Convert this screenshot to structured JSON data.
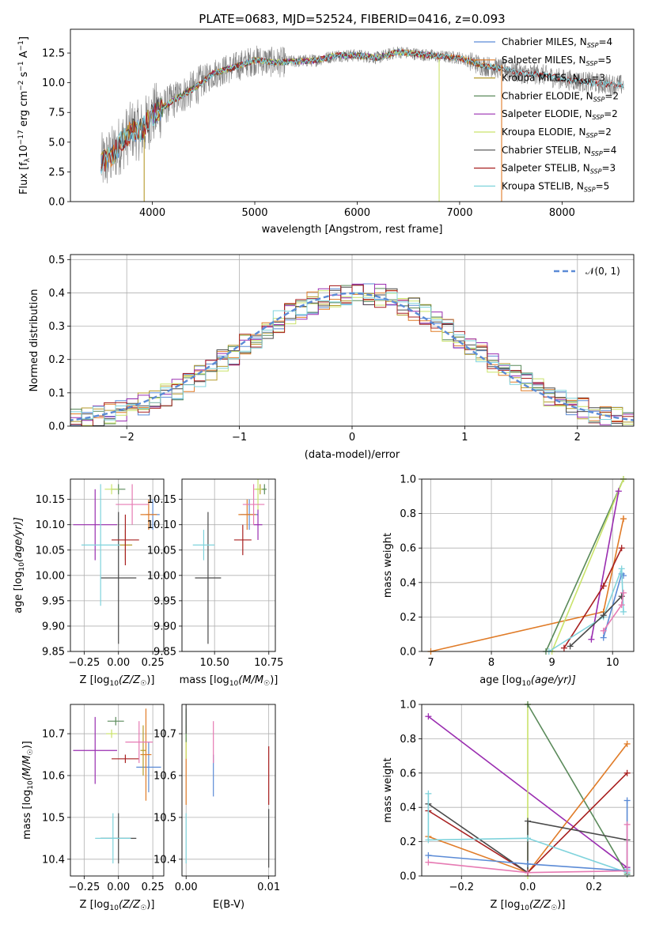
{
  "colors": {
    "Chabrier MILES": "#5b8bd6",
    "Salpeter MILES": "#e07b27",
    "Kroupa MILES": "#b59a2a",
    "Chabrier ELODIE": "#5a8a5a",
    "Salpeter ELODIE": "#9a2db0",
    "Kroupa ELODIE": "#c9e36a",
    "Chabrier STELIB": "#4a4a4a",
    "Salpeter STELIB": "#a82020",
    "Kroupa STELIB": "#7fd3dc",
    "pink": "#e67ab3",
    "data": "#7f7f7f",
    "gaussian": "#5b8bd6"
  },
  "chart_data": [
    {
      "id": "spectrum",
      "type": "line",
      "title": "PLATE=0683, MJD=52524, FIBERID=0416, z=0.093",
      "xlabel": "wavelength [Angstrom, rest frame]",
      "ylabel_main": "Flux [f",
      "ylabel_sub1": "λ",
      "ylabel_mid": "10",
      "ylabel_sup1": "−17",
      "ylabel_rest1": " erg cm",
      "ylabel_sup2": "−2",
      "ylabel_rest2": " s",
      "ylabel_sup3": "−1",
      "ylabel_rest3": " A",
      "ylabel_sup4": "−1",
      "ylabel_end": "]",
      "xlim": [
        3200,
        8700
      ],
      "ylim": [
        0,
        14.5
      ],
      "xticks": [
        "4000",
        "5000",
        "6000",
        "7000",
        "8000"
      ],
      "xtick_values": [
        4000,
        5000,
        6000,
        7000,
        8000
      ],
      "yticks": [
        "0.0",
        "2.5",
        "5.0",
        "7.5",
        "10.0",
        "12.5"
      ],
      "ytick_values": [
        0,
        2.5,
        5,
        7.5,
        10,
        12.5
      ],
      "shape_x": [
        3500,
        3600,
        3700,
        3800,
        3900,
        4000,
        4200,
        4400,
        4600,
        4800,
        5000,
        5200,
        5400,
        5600,
        5800,
        6000,
        6200,
        6400,
        6600,
        6800,
        7000,
        7200,
        7400,
        7600,
        7800,
        8000,
        8200,
        8400,
        8600
      ],
      "shape_y": [
        3.2,
        3.8,
        5.0,
        6.0,
        6.0,
        7.3,
        8.5,
        9.5,
        10.8,
        11.3,
        11.9,
        11.7,
        11.8,
        11.9,
        12.3,
        12.3,
        12.1,
        12.6,
        12.4,
        12.2,
        12.1,
        11.5,
        11.2,
        10.8,
        10.7,
        10.3,
        10.1,
        9.9,
        9.8
      ],
      "spikes": [
        {
          "x": 3920,
          "y0": 0,
          "y1": 5.8
        },
        {
          "x": 6800,
          "y0": 0,
          "y1": 12.0
        },
        {
          "x": 7410,
          "y0": 0,
          "y1": 11.5
        }
      ],
      "legend": [
        {
          "prefix": "Chabrier MILES, N",
          "sub": "SSP",
          "suffix": "=4"
        },
        {
          "prefix": "Salpeter MILES, N",
          "sub": "SSP",
          "suffix": "=5"
        },
        {
          "prefix": "Kroupa MILES, N",
          "sub": "SSP",
          "suffix": "=3"
        },
        {
          "prefix": "Chabrier ELODIE, N",
          "sub": "SSP",
          "suffix": "=2"
        },
        {
          "prefix": "Salpeter ELODIE, N",
          "sub": "SSP",
          "suffix": "=2"
        },
        {
          "prefix": "Kroupa ELODIE, N",
          "sub": "SSP",
          "suffix": "=2"
        },
        {
          "prefix": "Chabrier STELIB, N",
          "sub": "SSP",
          "suffix": "=4"
        },
        {
          "prefix": "Salpeter STELIB, N",
          "sub": "SSP",
          "suffix": "=3"
        },
        {
          "prefix": "Kroupa STELIB, N",
          "sub": "SSP",
          "suffix": "=5"
        }
      ]
    },
    {
      "id": "residuals",
      "type": "bar",
      "xlabel": "(data-model)/error",
      "ylabel": "Normed distribution",
      "xlim": [
        -2.5,
        2.5
      ],
      "ylim": [
        0,
        0.515
      ],
      "xticks": [
        "−2",
        "−1",
        "0",
        "1",
        "2"
      ],
      "xtick_values": [
        -2,
        -1,
        0,
        1,
        2
      ],
      "yticks": [
        "0.0",
        "0.1",
        "0.2",
        "0.3",
        "0.4",
        "0.5"
      ],
      "ytick_values": [
        0,
        0.1,
        0.2,
        0.3,
        0.4,
        0.5
      ],
      "bin_width": 0.1,
      "legend_label": "𝒩(0, 1)",
      "gaussian": {
        "mu": 0,
        "sigma": 1
      }
    },
    {
      "id": "age-vs-Z",
      "type": "scatter",
      "xlabel": "Z [log",
      "xlabel_sub": "10",
      "xlabel_rest": "(Z/Z",
      "xlabel_sub2": "☉",
      "xlabel_end": ")]",
      "ylabel": "age  [log",
      "ylabel_sub": "10",
      "ylabel_rest": "(age/yr)]",
      "xlim": [
        -0.35,
        0.33
      ],
      "ylim": [
        9.85,
        10.19
      ],
      "xticks": [
        "−0.25",
        "0.00",
        "0.25"
      ],
      "xtick_values": [
        -0.25,
        0,
        0.25
      ],
      "yticks": [
        "9.85",
        "9.90",
        "9.95",
        "10.00",
        "10.05",
        "10.10",
        "10.15"
      ],
      "ytick_values": [
        9.85,
        9.9,
        9.95,
        10.0,
        10.05,
        10.1,
        10.15
      ],
      "points": [
        {
          "model": "Chabrier MILES",
          "x": 0.25,
          "y": 10.12,
          "xerr": 0.05,
          "yerr": 0.03
        },
        {
          "model": "Salpeter MILES",
          "x": 0.22,
          "y": 10.12,
          "xerr": 0.06,
          "yerr": 0.03
        },
        {
          "model": "Kroupa MILES",
          "x": 0.05,
          "y": 10.06,
          "xerr": 0.05,
          "yerr": 0.03
        },
        {
          "model": "Chabrier ELODIE",
          "x": 0.0,
          "y": 10.17,
          "xerr": 0.05,
          "yerr": 0.01
        },
        {
          "model": "Salpeter ELODIE",
          "x": -0.3,
          "y": 10.1,
          "xerr": 0.0,
          "yerr": 0.0
        },
        {
          "model": "Salpeter ELODIE",
          "x": -0.17,
          "y": 10.1,
          "xerr": 0.16,
          "yerr": 0.07
        },
        {
          "model": "Kroupa ELODIE",
          "x": -0.05,
          "y": 10.17,
          "xerr": 0.05,
          "yerr": 0.01
        },
        {
          "model": "Chabrier STELIB",
          "x": 0.0,
          "y": 9.995,
          "xerr": 0.13,
          "yerr": 0.13
        },
        {
          "model": "Salpeter STELIB",
          "x": 0.05,
          "y": 10.07,
          "xerr": 0.1,
          "yerr": 0.05
        },
        {
          "model": "Kroupa STELIB",
          "x": -0.13,
          "y": 10.06,
          "xerr": 0.14,
          "yerr": 0.12
        },
        {
          "model": "pink",
          "x": 0.1,
          "y": 10.14,
          "xerr": 0.12,
          "yerr": 0.04
        }
      ]
    },
    {
      "id": "age-vs-mass",
      "type": "scatter",
      "xlabel": "mass [log",
      "xlabel_sub": "10",
      "xlabel_rest": "(M/M",
      "xlabel_sub2": "☉",
      "xlabel_end": ")]",
      "xlim": [
        10.35,
        10.78
      ],
      "ylim": [
        9.85,
        10.19
      ],
      "xticks": [
        "10.50",
        "10.75"
      ],
      "xtick_values": [
        10.5,
        10.75
      ],
      "yticks": [
        "9.85",
        "9.90",
        "9.95",
        "10.00",
        "10.05",
        "10.10",
        "10.15"
      ],
      "ytick_values": [
        9.85,
        9.9,
        9.95,
        10.0,
        10.05,
        10.1,
        10.15
      ],
      "points": [
        {
          "model": "Chabrier MILES",
          "x": 10.66,
          "y": 10.12,
          "xerr": 0.04,
          "yerr": 0.03
        },
        {
          "model": "Salpeter MILES",
          "x": 10.65,
          "y": 10.12,
          "xerr": 0.04,
          "yerr": 0.03
        },
        {
          "model": "Kroupa MILES",
          "x": 10.71,
          "y": 10.17,
          "xerr": 0.02,
          "yerr": 0.01
        },
        {
          "model": "Chabrier ELODIE",
          "x": 10.73,
          "y": 10.17,
          "xerr": 0.01,
          "yerr": 0.01
        },
        {
          "model": "Salpeter ELODIE",
          "x": 10.7,
          "y": 10.1,
          "xerr": 0.02,
          "yerr": 0.03
        },
        {
          "model": "Kroupa ELODIE",
          "x": 10.7,
          "y": 10.17,
          "xerr": 0.02,
          "yerr": 0.04
        },
        {
          "model": "Chabrier STELIB",
          "x": 10.47,
          "y": 9.995,
          "xerr": 0.06,
          "yerr": 0.13
        },
        {
          "model": "Salpeter STELIB",
          "x": 10.63,
          "y": 10.07,
          "xerr": 0.04,
          "yerr": 0.03
        },
        {
          "model": "Kroupa STELIB",
          "x": 10.45,
          "y": 10.06,
          "xerr": 0.05,
          "yerr": 0.03
        },
        {
          "model": "pink",
          "x": 10.68,
          "y": 10.14,
          "xerr": 0.05,
          "yerr": 0.04
        }
      ]
    },
    {
      "id": "mass-weight-vs-age",
      "type": "line",
      "xlabel": "age  [log",
      "xlabel_sub": "10",
      "xlabel_rest": "(age/yr)]",
      "ylabel": "mass weight",
      "xlim": [
        6.85,
        10.35
      ],
      "ylim": [
        0,
        1
      ],
      "xticks": [
        "7",
        "8",
        "9",
        "10"
      ],
      "xtick_values": [
        7,
        8,
        9,
        10
      ],
      "yticks": [
        "0.0",
        "0.2",
        "0.4",
        "0.6",
        "0.8",
        "1.0"
      ],
      "ytick_values": [
        0,
        0.2,
        0.4,
        0.6,
        0.8,
        1.0
      ],
      "series": [
        {
          "model": "Salpeter MILES",
          "x": [
            7.0,
            9.85,
            10.18,
            10.18
          ],
          "y": [
            0.0,
            0.23,
            0.77,
            0.77
          ]
        },
        {
          "model": "Chabrier ELODIE",
          "x": [
            8.9,
            10.18
          ],
          "y": [
            0.0,
            1.0
          ]
        },
        {
          "model": "Kroupa ELODIE",
          "x": [
            9.0,
            10.18
          ],
          "y": [
            0.0,
            1.0
          ]
        },
        {
          "model": "Salpeter ELODIE",
          "x": [
            9.65,
            10.1
          ],
          "y": [
            0.07,
            0.93
          ]
        },
        {
          "model": "Salpeter STELIB",
          "x": [
            9.2,
            9.85,
            10.15
          ],
          "y": [
            0.02,
            0.38,
            0.6
          ]
        },
        {
          "model": "Chabrier MILES",
          "x": [
            9.85,
            10.15,
            10.18
          ],
          "y": [
            0.08,
            0.45,
            0.44
          ]
        },
        {
          "model": "Kroupa STELIB",
          "x": [
            8.95,
            9.85,
            10.15,
            10.18
          ],
          "y": [
            0.0,
            0.2,
            0.48,
            0.23
          ]
        },
        {
          "model": "Chabrier STELIB",
          "x": [
            9.3,
            9.85,
            10.15
          ],
          "y": [
            0.03,
            0.21,
            0.32
          ]
        },
        {
          "model": "pink",
          "x": [
            9.85,
            10.15,
            10.18
          ],
          "y": [
            0.12,
            0.27,
            0.34
          ]
        }
      ]
    },
    {
      "id": "mass-vs-Z",
      "type": "scatter",
      "xlabel": "Z [log",
      "xlabel_sub": "10",
      "xlabel_rest": "(Z/Z",
      "xlabel_sub2": "☉",
      "xlabel_end": ")]",
      "ylabel": "mass [log",
      "ylabel_sub": "10",
      "ylabel_rest": "(M/M",
      "ylabel_sub2": "☉",
      "ylabel_end": ")]",
      "xlim": [
        -0.35,
        0.33
      ],
      "ylim": [
        10.36,
        10.77
      ],
      "xticks": [
        "−0.25",
        "0.00",
        "0.25"
      ],
      "xtick_values": [
        -0.25,
        0,
        0.25
      ],
      "yticks": [
        "10.4",
        "10.5",
        "10.6",
        "10.7"
      ],
      "ytick_values": [
        10.4,
        10.5,
        10.6,
        10.7
      ],
      "points": [
        {
          "model": "Chabrier MILES",
          "x": 0.22,
          "y": 10.62,
          "xerr": 0.09,
          "yerr": 0.06
        },
        {
          "model": "Salpeter MILES",
          "x": 0.2,
          "y": 10.65,
          "xerr": 0.04,
          "yerr": 0.11
        },
        {
          "model": "Kroupa MILES",
          "x": 0.18,
          "y": 10.66,
          "xerr": 0.02,
          "yerr": 0.06
        },
        {
          "model": "Chabrier ELODIE",
          "x": -0.02,
          "y": 10.73,
          "xerr": 0.06,
          "yerr": 0.01
        },
        {
          "model": "Salpeter ELODIE",
          "x": -0.17,
          "y": 10.66,
          "xerr": 0.16,
          "yerr": 0.08
        },
        {
          "model": "Kroupa ELODIE",
          "x": -0.05,
          "y": 10.7,
          "xerr": 0.04,
          "yerr": 0.01
        },
        {
          "model": "Chabrier STELIB",
          "x": 0.0,
          "y": 10.45,
          "xerr": 0.13,
          "yerr": 0.06
        },
        {
          "model": "Salpeter STELIB",
          "x": 0.05,
          "y": 10.64,
          "xerr": 0.1,
          "yerr": 0.01
        },
        {
          "model": "Kroupa STELIB",
          "x": -0.04,
          "y": 10.45,
          "xerr": 0.13,
          "yerr": 0.06
        },
        {
          "model": "pink",
          "x": 0.15,
          "y": 10.68,
          "xerr": 0.1,
          "yerr": 0.05
        }
      ]
    },
    {
      "id": "mass-vs-EBV",
      "type": "scatter",
      "xlabel": "E(B-V)",
      "xlim": [
        -0.0005,
        0.0108
      ],
      "ylim": [
        10.36,
        10.77
      ],
      "xticks": [
        "0.00",
        "0.01"
      ],
      "xtick_values": [
        0,
        0.01
      ],
      "yticks": [
        "10.4",
        "10.5",
        "10.6",
        "10.7"
      ],
      "ytick_values": [
        10.4,
        10.5,
        10.6,
        10.7
      ],
      "points": [
        {
          "model": "Chabrier MILES",
          "x": 0.0033,
          "y": 10.6,
          "xerr": 0,
          "yerr": 0.05
        },
        {
          "model": "Salpeter MILES",
          "x": 0.0,
          "y": 10.61,
          "xerr": 0,
          "yerr": 0.08
        },
        {
          "model": "Kroupa ELODIE",
          "x": 0.0,
          "y": 10.68,
          "xerr": 0,
          "yerr": 0.04
        },
        {
          "model": "Chabrier ELODIE",
          "x": 0.0,
          "y": 10.72,
          "xerr": 0,
          "yerr": 0.04
        },
        {
          "model": "Kroupa STELIB",
          "x": 0.0,
          "y": 10.45,
          "xerr": 0,
          "yerr": 0.06
        },
        {
          "model": "Chabrier STELIB",
          "x": 0.0,
          "y": 10.74,
          "xerr": 0,
          "yerr": 0.04
        },
        {
          "model": "Salpeter STELIB",
          "x": 0.01,
          "y": 10.6,
          "xerr": 0,
          "yerr": 0.07
        },
        {
          "model": "Chabrier STELIB",
          "x": 0.01,
          "y": 10.45,
          "xerr": 0,
          "yerr": 0.07
        },
        {
          "model": "pink",
          "x": 0.0033,
          "y": 10.68,
          "xerr": 0,
          "yerr": 0.05
        }
      ]
    },
    {
      "id": "mass-weight-vs-Z",
      "type": "line",
      "xlabel": "Z [log",
      "xlabel_sub": "10",
      "xlabel_rest": "(Z/Z",
      "xlabel_sub2": "☉",
      "xlabel_end": ")]",
      "ylabel": "mass weight",
      "xlim": [
        -0.32,
        0.32
      ],
      "ylim": [
        0,
        1
      ],
      "xticks": [
        "−0.2",
        "0.0",
        "0.2"
      ],
      "xtick_values": [
        -0.2,
        0,
        0.2
      ],
      "yticks": [
        "0.0",
        "0.2",
        "0.4",
        "0.6",
        "0.8",
        "1.0"
      ],
      "ytick_values": [
        0,
        0.2,
        0.4,
        0.6,
        0.8,
        1.0
      ],
      "series": [
        {
          "model": "Salpeter ELODIE",
          "x": [
            -0.3,
            0.3
          ],
          "y": [
            0.93,
            0.05
          ]
        },
        {
          "model": "Kroupa ELODIE",
          "x": [
            0.0,
            0.0
          ],
          "y": [
            0.0,
            1.0
          ]
        },
        {
          "model": "Chabrier ELODIE",
          "x": [
            0.0,
            0.3
          ],
          "y": [
            1.0,
            0.01
          ]
        },
        {
          "model": "Salpeter MILES",
          "x": [
            -0.3,
            0.0,
            0.3
          ],
          "y": [
            0.23,
            0.02,
            0.77
          ]
        },
        {
          "model": "Salpeter STELIB",
          "x": [
            -0.3,
            0.0,
            0.3
          ],
          "y": [
            0.38,
            0.02,
            0.6
          ]
        },
        {
          "model": "Chabrier STELIB",
          "x": [
            -0.3,
            0.0,
            0.0,
            0.3
          ],
          "y": [
            0.42,
            0.02,
            0.32,
            0.21
          ]
        },
        {
          "model": "Kroupa STELIB",
          "x": [
            -0.3,
            -0.3,
            0.0,
            0.3,
            0.3
          ],
          "y": [
            0.48,
            0.21,
            0.22,
            0.02,
            0.04
          ]
        },
        {
          "model": "Chabrier MILES",
          "x": [
            -0.3,
            0.0,
            0.3,
            0.3
          ],
          "y": [
            0.12,
            0.07,
            0.03,
            0.44
          ]
        },
        {
          "model": "pink",
          "x": [
            -0.3,
            0.0,
            0.3,
            0.3
          ],
          "y": [
            0.08,
            0.02,
            0.03,
            0.3
          ]
        }
      ]
    }
  ]
}
